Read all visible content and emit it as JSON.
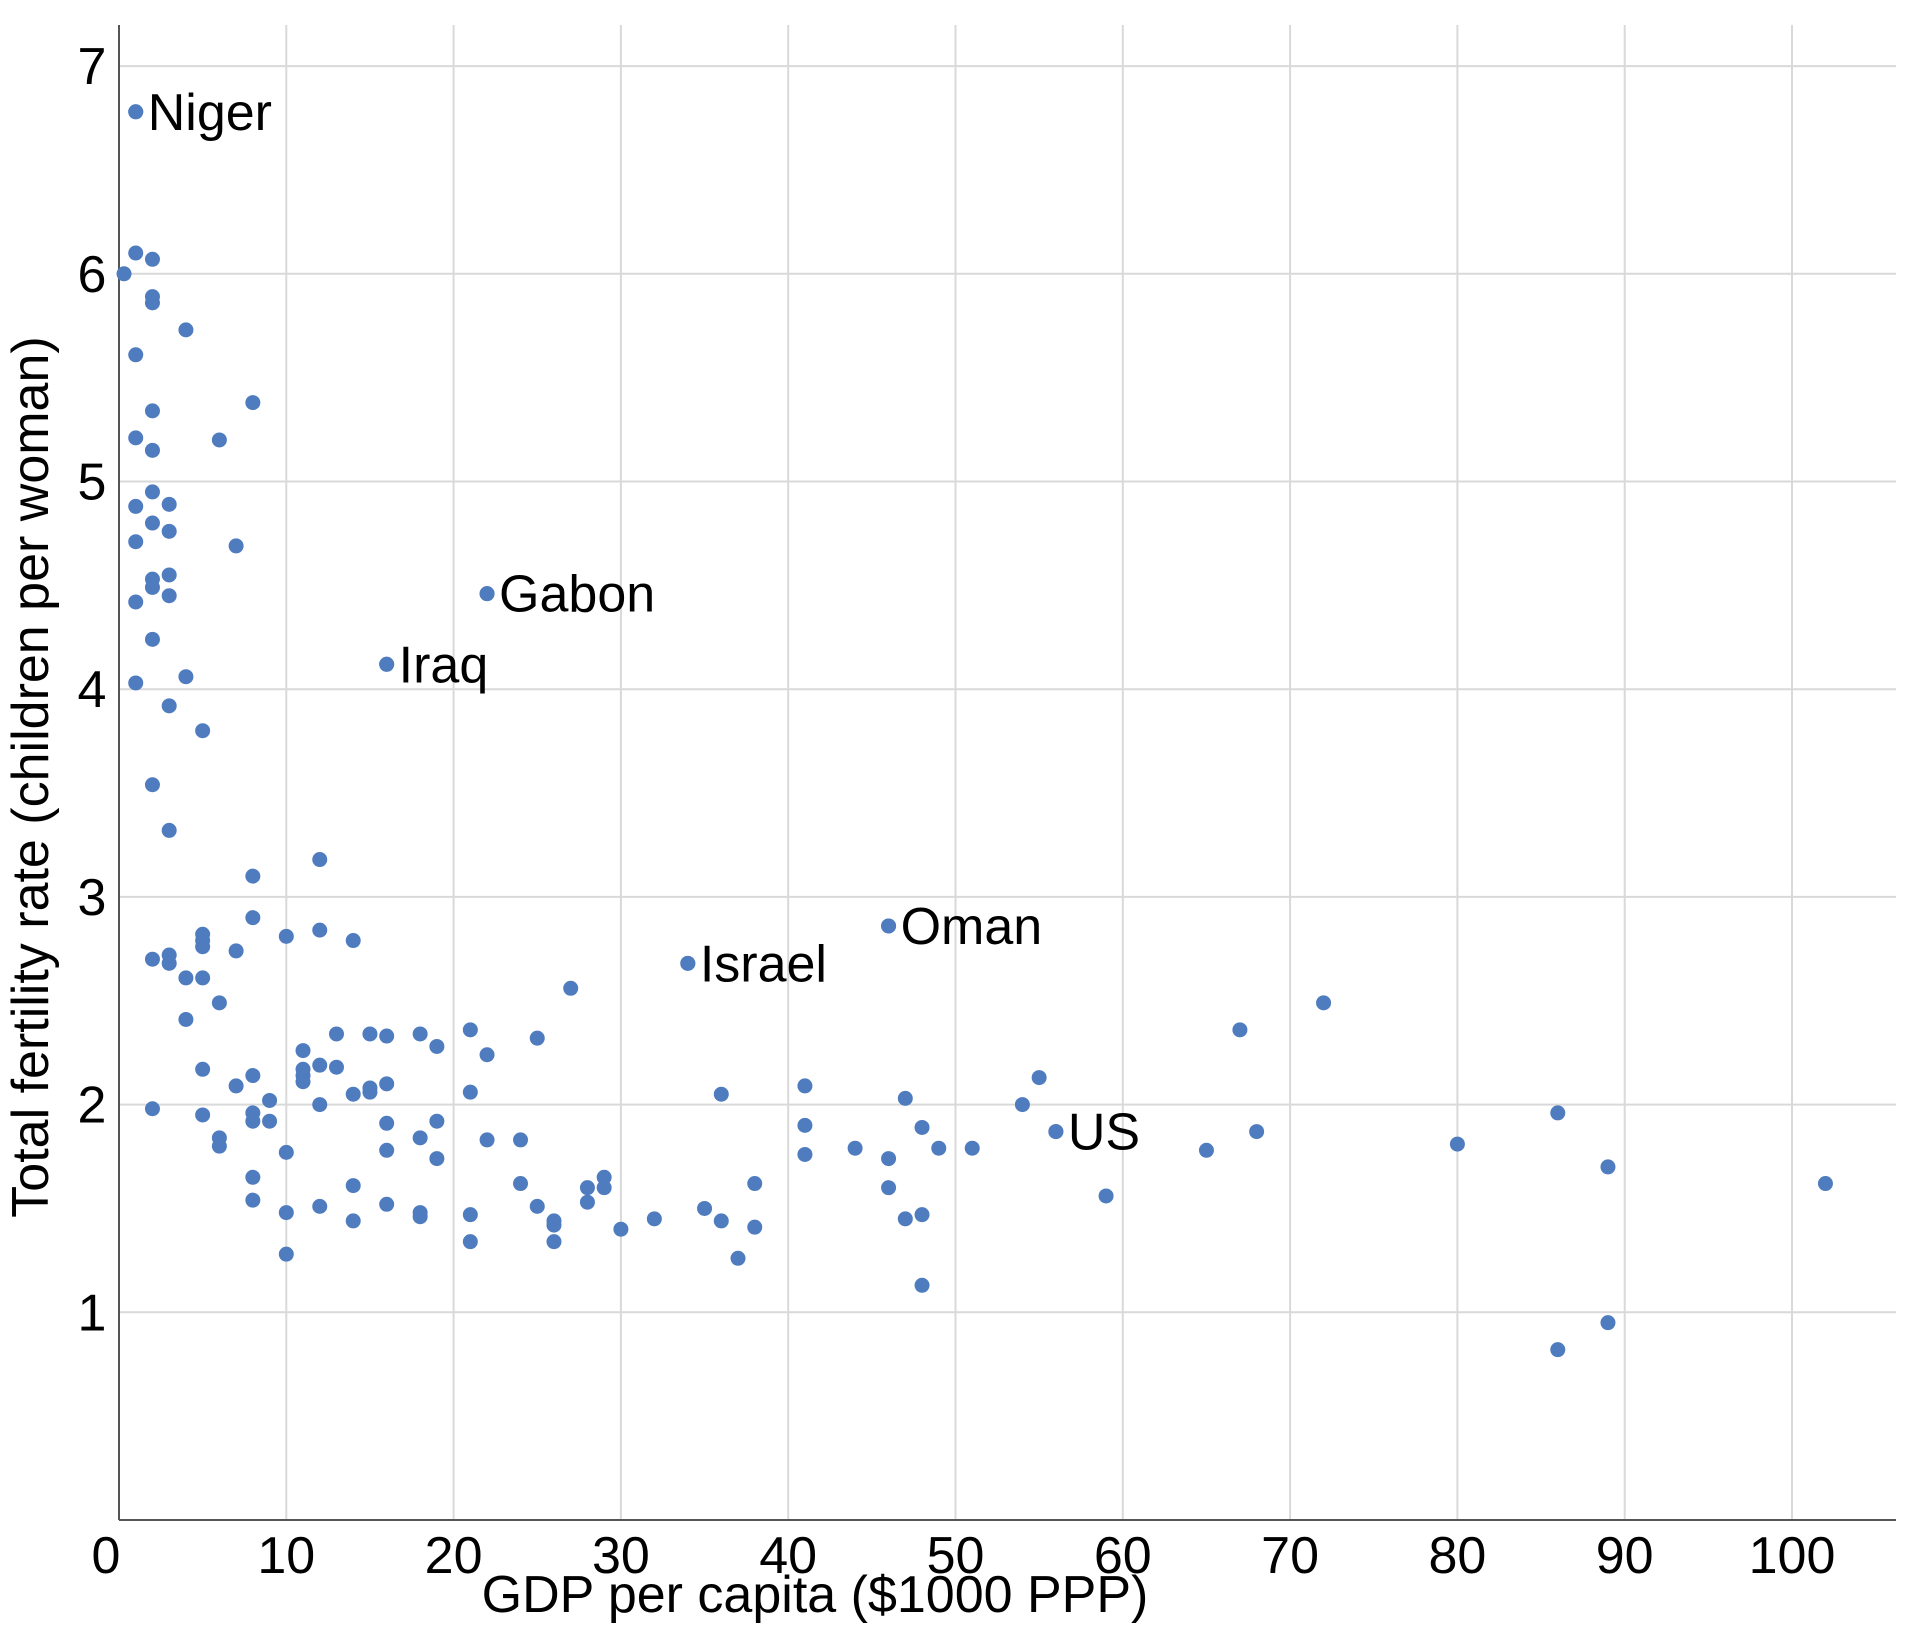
{
  "chart_data": {
    "type": "scatter",
    "title": "",
    "xlabel": "GDP per capita ($1000 PPP)",
    "ylabel": "Total fertility rate (children per woman)",
    "xlim": [
      0,
      106
    ],
    "ylim": [
      0,
      7.2
    ],
    "x_ticks": [
      0,
      10,
      20,
      30,
      40,
      50,
      60,
      70,
      80,
      90,
      100
    ],
    "y_ticks": [
      1,
      2,
      3,
      4,
      5,
      6,
      7
    ],
    "grid": true,
    "color": "#4f7cbf",
    "annotations": [
      {
        "text": "Niger",
        "x": 1,
        "y": 6.78
      },
      {
        "text": "Gabon",
        "x": 22,
        "y": 4.46
      },
      {
        "text": "Iraq",
        "x": 16,
        "y": 4.12
      },
      {
        "text": "Israel",
        "x": 34,
        "y": 2.68
      },
      {
        "text": "Oman",
        "x": 46,
        "y": 2.86
      },
      {
        "text": "US",
        "x": 56,
        "y": 1.87
      }
    ],
    "points": [
      [
        1,
        6.78
      ],
      [
        0.3,
        6.0
      ],
      [
        1,
        6.1
      ],
      [
        2,
        6.07
      ],
      [
        2,
        5.89
      ],
      [
        2,
        5.86
      ],
      [
        4,
        5.73
      ],
      [
        1,
        5.61
      ],
      [
        8,
        5.38
      ],
      [
        2,
        5.34
      ],
      [
        1,
        5.21
      ],
      [
        6,
        5.2
      ],
      [
        2,
        5.15
      ],
      [
        2,
        4.95
      ],
      [
        1,
        4.88
      ],
      [
        3,
        4.89
      ],
      [
        2,
        4.8
      ],
      [
        3,
        4.76
      ],
      [
        1,
        4.71
      ],
      [
        7,
        4.69
      ],
      [
        3,
        4.55
      ],
      [
        2,
        4.53
      ],
      [
        2,
        4.49
      ],
      [
        3,
        4.45
      ],
      [
        1,
        4.42
      ],
      [
        22,
        4.46
      ],
      [
        2,
        4.24
      ],
      [
        16,
        4.12
      ],
      [
        4,
        4.06
      ],
      [
        1,
        4.03
      ],
      [
        3,
        3.92
      ],
      [
        5,
        3.8
      ],
      [
        2,
        3.54
      ],
      [
        3,
        3.32
      ],
      [
        12,
        3.18
      ],
      [
        8,
        3.1
      ],
      [
        8,
        2.9
      ],
      [
        12,
        2.84
      ],
      [
        5,
        2.82
      ],
      [
        10,
        2.81
      ],
      [
        5,
        2.79
      ],
      [
        14,
        2.79
      ],
      [
        5,
        2.76
      ],
      [
        7,
        2.74
      ],
      [
        3,
        2.72
      ],
      [
        2,
        2.7
      ],
      [
        3,
        2.68
      ],
      [
        34,
        2.68
      ],
      [
        46,
        2.86
      ],
      [
        4,
        2.61
      ],
      [
        5,
        2.61
      ],
      [
        27,
        2.56
      ],
      [
        6,
        2.49
      ],
      [
        72,
        2.49
      ],
      [
        4,
        2.41
      ],
      [
        67,
        2.36
      ],
      [
        21,
        2.36
      ],
      [
        13,
        2.34
      ],
      [
        15,
        2.34
      ],
      [
        16,
        2.33
      ],
      [
        18,
        2.34
      ],
      [
        25,
        2.32
      ],
      [
        19,
        2.28
      ],
      [
        11,
        2.26
      ],
      [
        22,
        2.24
      ],
      [
        12,
        2.19
      ],
      [
        13,
        2.18
      ],
      [
        11,
        2.17
      ],
      [
        5,
        2.17
      ],
      [
        11,
        2.14
      ],
      [
        8,
        2.14
      ],
      [
        55,
        2.13
      ],
      [
        11,
        2.11
      ],
      [
        16,
        2.1
      ],
      [
        7,
        2.09
      ],
      [
        41,
        2.09
      ],
      [
        15,
        2.08
      ],
      [
        15,
        2.06
      ],
      [
        14,
        2.05
      ],
      [
        21,
        2.06
      ],
      [
        36,
        2.05
      ],
      [
        47,
        2.03
      ],
      [
        9,
        2.02
      ],
      [
        12,
        2.0
      ],
      [
        54,
        2.0
      ],
      [
        2,
        1.98
      ],
      [
        8,
        1.96
      ],
      [
        86,
        1.96
      ],
      [
        5,
        1.95
      ],
      [
        8,
        1.92
      ],
      [
        9,
        1.92
      ],
      [
        16,
        1.91
      ],
      [
        19,
        1.92
      ],
      [
        41,
        1.9
      ],
      [
        48,
        1.89
      ],
      [
        56,
        1.87
      ],
      [
        68,
        1.87
      ],
      [
        6,
        1.84
      ],
      [
        18,
        1.84
      ],
      [
        22,
        1.83
      ],
      [
        24,
        1.83
      ],
      [
        80,
        1.81
      ],
      [
        6,
        1.8
      ],
      [
        44,
        1.79
      ],
      [
        49,
        1.79
      ],
      [
        51,
        1.79
      ],
      [
        65,
        1.78
      ],
      [
        10,
        1.77
      ],
      [
        16,
        1.78
      ],
      [
        41,
        1.76
      ],
      [
        19,
        1.74
      ],
      [
        46,
        1.74
      ],
      [
        89,
        1.7
      ],
      [
        8,
        1.65
      ],
      [
        29,
        1.65
      ],
      [
        24,
        1.62
      ],
      [
        38,
        1.62
      ],
      [
        102,
        1.62
      ],
      [
        14,
        1.61
      ],
      [
        28,
        1.6
      ],
      [
        29,
        1.6
      ],
      [
        46,
        1.6
      ],
      [
        59,
        1.56
      ],
      [
        8,
        1.54
      ],
      [
        28,
        1.53
      ],
      [
        12,
        1.51
      ],
      [
        16,
        1.52
      ],
      [
        25,
        1.51
      ],
      [
        35,
        1.5
      ],
      [
        10,
        1.48
      ],
      [
        18,
        1.48
      ],
      [
        21,
        1.47
      ],
      [
        48,
        1.47
      ],
      [
        18,
        1.46
      ],
      [
        32,
        1.45
      ],
      [
        14,
        1.44
      ],
      [
        26,
        1.44
      ],
      [
        36,
        1.44
      ],
      [
        47,
        1.45
      ],
      [
        26,
        1.42
      ],
      [
        30,
        1.4
      ],
      [
        38,
        1.41
      ],
      [
        21,
        1.34
      ],
      [
        26,
        1.34
      ],
      [
        10,
        1.28
      ],
      [
        37,
        1.26
      ],
      [
        48,
        1.13
      ],
      [
        89,
        0.95
      ],
      [
        86,
        0.82
      ]
    ]
  }
}
